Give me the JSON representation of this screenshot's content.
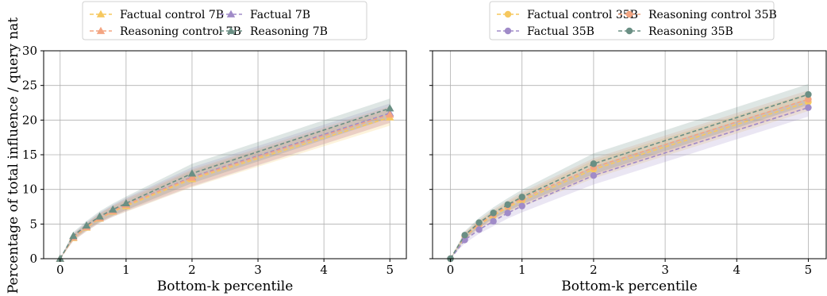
{
  "figure": {
    "ylabel": "Percentage of total influence / query nat"
  },
  "chart_data": [
    {
      "type": "line",
      "xlabel": "Bottom-k percentile",
      "ylabel": "Percentage of total influence / query nat",
      "xlim": [
        -0.25,
        5.25
      ],
      "ylim": [
        0,
        30
      ],
      "xticks": [
        "0",
        "1",
        "2",
        "3",
        "4",
        "5"
      ],
      "yticks": [
        "0",
        "5",
        "10",
        "15",
        "20",
        "25",
        "30"
      ],
      "grid": true,
      "legend_placement": "top-center-outside",
      "legend_columns": 2,
      "x": [
        0,
        0.2,
        0.4,
        0.6,
        0.8,
        1,
        2,
        5
      ],
      "series": [
        {
          "name": "Factual control 7B",
          "color": "#f6c85f",
          "marker": "triangle",
          "band": 1.2,
          "values": [
            0,
            3.0,
            4.5,
            5.8,
            6.8,
            7.6,
            11.5,
            20.4
          ]
        },
        {
          "name": "Factual 7B",
          "color": "#a08bc8",
          "marker": "triangle",
          "band": 1.4,
          "values": [
            0,
            3.1,
            4.6,
            5.9,
            6.9,
            7.8,
            11.8,
            21.0
          ]
        },
        {
          "name": "Reasoning control 7B",
          "color": "#f4a582",
          "marker": "triangle",
          "band": 1.2,
          "values": [
            0,
            3.1,
            4.6,
            5.9,
            6.9,
            7.8,
            11.7,
            20.8
          ]
        },
        {
          "name": "Reasoning 7B",
          "color": "#6a8f84",
          "marker": "triangle",
          "band": 1.4,
          "values": [
            0,
            3.3,
            4.8,
            6.1,
            7.1,
            8.0,
            12.3,
            21.7
          ]
        }
      ]
    },
    {
      "type": "line",
      "xlabel": "Bottom-k percentile",
      "ylabel": "",
      "xlim": [
        -0.25,
        5.25
      ],
      "ylim": [
        0,
        30
      ],
      "xticks": [
        "0",
        "1",
        "2",
        "3",
        "4",
        "5"
      ],
      "yticks": [
        "0",
        "5",
        "10",
        "15",
        "20",
        "25",
        "30"
      ],
      "grid": true,
      "legend_placement": "top-center-outside",
      "legend_columns": 2,
      "x": [
        0,
        0.2,
        0.4,
        0.6,
        0.8,
        1,
        2,
        5
      ],
      "series": [
        {
          "name": "Factual control 35B",
          "color": "#f6c85f",
          "marker": "circle",
          "band": 1.3,
          "values": [
            0,
            3.2,
            4.9,
            6.2,
            7.4,
            8.4,
            12.9,
            22.6
          ]
        },
        {
          "name": "Reasoning control 35B",
          "color": "#f4a582",
          "marker": "circle",
          "band": 1.3,
          "values": [
            0,
            3.3,
            5.0,
            6.4,
            7.6,
            8.7,
            13.2,
            23.0
          ]
        },
        {
          "name": "Factual 35B",
          "color": "#a08bc8",
          "marker": "circle",
          "band": 1.3,
          "values": [
            0,
            2.7,
            4.2,
            5.4,
            6.6,
            7.6,
            12.0,
            21.8
          ]
        },
        {
          "name": "Reasoning 35B",
          "color": "#6a8f84",
          "marker": "circle",
          "band": 1.5,
          "values": [
            0,
            3.4,
            5.2,
            6.6,
            7.8,
            8.9,
            13.7,
            23.7
          ]
        }
      ]
    }
  ]
}
